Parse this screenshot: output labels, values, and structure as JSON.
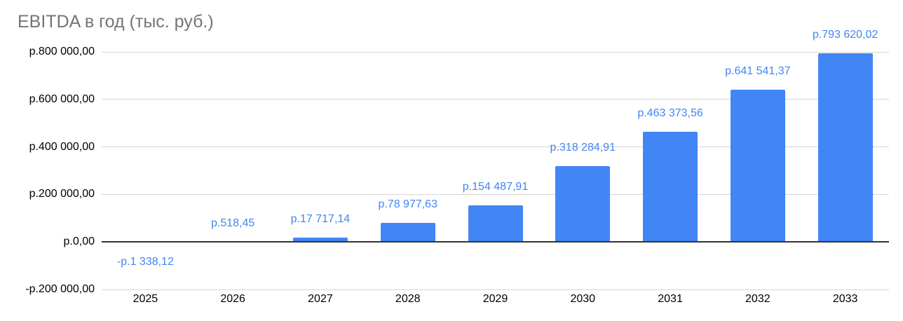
{
  "title": "EBITDA в год (тыс. руб.)",
  "chart_data": {
    "type": "bar",
    "title": "EBITDA в год (тыс. руб.)",
    "xlabel": "",
    "ylabel": "",
    "categories": [
      "2025",
      "2026",
      "2027",
      "2028",
      "2029",
      "2030",
      "2031",
      "2032",
      "2033"
    ],
    "values": [
      -1338.12,
      518.45,
      17717.14,
      78977.63,
      154487.91,
      318284.91,
      463373.56,
      641541.37,
      793620.02
    ],
    "data_labels": [
      "-р.1 338,12",
      "р.518,45",
      "р.17 717,14",
      "р.78 977,63",
      "р.154 487,91",
      "р.318 284,91",
      "р.463 373,56",
      "р.641 541,37",
      "р.793 620,02"
    ],
    "y_ticks": [
      {
        "value": 800000,
        "label": "р.800 000,00"
      },
      {
        "value": 600000,
        "label": "р.600 000,00"
      },
      {
        "value": 400000,
        "label": "р.400 000,00"
      },
      {
        "value": 200000,
        "label": "р.200 000,00"
      },
      {
        "value": 0,
        "label": "р.0,00"
      },
      {
        "value": -200000,
        "label": "-р.200 000,00"
      }
    ],
    "ylim": [
      -200000,
      800000
    ],
    "grid": true,
    "legend": "none",
    "bar_color": "#4285f4",
    "label_color": "#4285f4",
    "title_color": "#757575",
    "axis_text_color": "#000000",
    "gridline_color": "#d6d6d6",
    "zero_line_color": "#333333"
  }
}
